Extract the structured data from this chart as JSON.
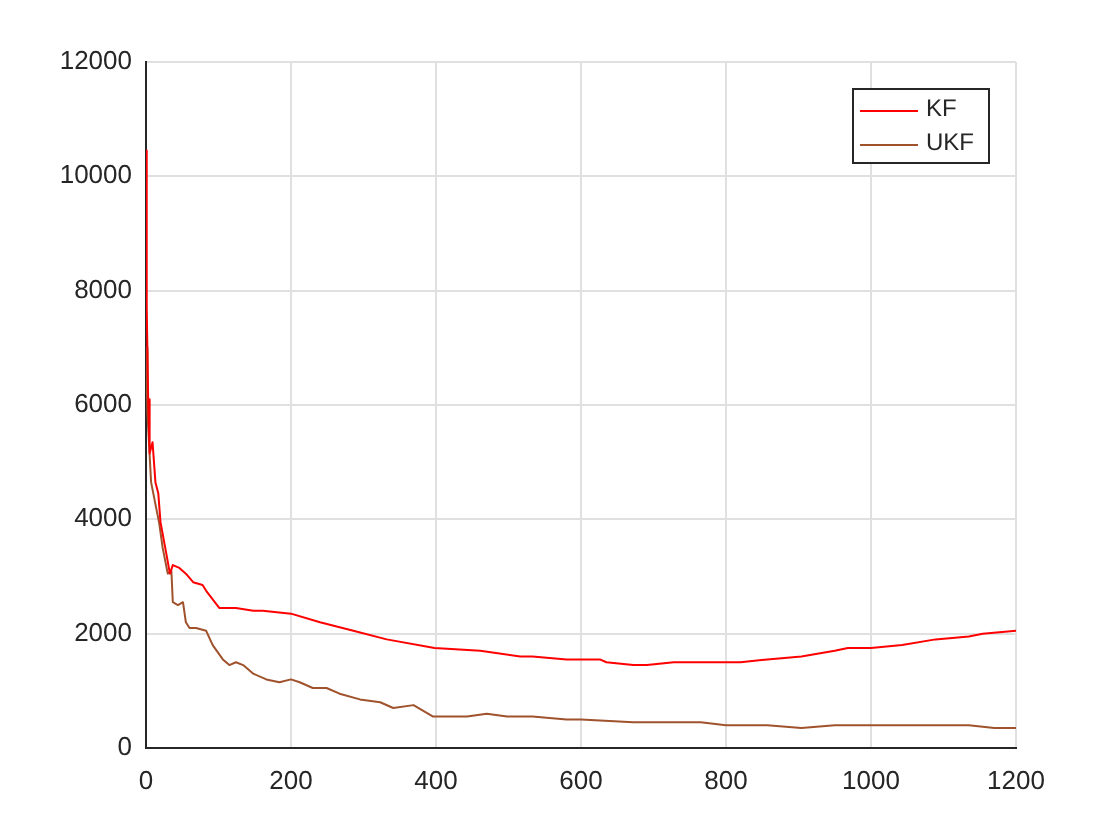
{
  "chart_data": {
    "type": "line",
    "xlim": [
      0,
      1200
    ],
    "xticks": [
      0,
      200,
      400,
      600,
      800,
      1000,
      1200
    ],
    "ylim": [
      0,
      12000
    ],
    "yticks": [
      0,
      2000,
      4000,
      6000,
      8000,
      10000,
      12000
    ],
    "grid": true,
    "legend": "top right",
    "series": [
      {
        "name": "KF",
        "color": "#ff0000",
        "x": [
          0,
          1,
          3,
          5,
          9,
          13,
          17,
          20,
          28,
          33,
          37,
          46,
          55,
          65,
          78,
          83,
          92,
          101,
          111,
          124,
          148,
          161,
          200,
          240,
          286,
          332,
          398,
          461,
          516,
          533,
          580,
          600,
          626,
          635,
          672,
          691,
          728,
          765,
          800,
          820,
          857,
          904,
          950,
          968,
          1000,
          1043,
          1089,
          1135,
          1154,
          1200
        ],
        "values": [
          10450,
          7700,
          6100,
          5150,
          5350,
          4650,
          4450,
          3950,
          3400,
          3050,
          3200,
          3150,
          3050,
          2900,
          2850,
          2750,
          2600,
          2450,
          2450,
          2450,
          2400,
          2400,
          2350,
          2200,
          2050,
          1900,
          1750,
          1700,
          1600,
          1600,
          1550,
          1550,
          1550,
          1500,
          1450,
          1450,
          1500,
          1500,
          1500,
          1500,
          1550,
          1600,
          1700,
          1750,
          1750,
          1800,
          1900,
          1950,
          2000,
          2050
        ]
      },
      {
        "name": "UKF",
        "color": "#a0522d",
        "x": [
          0,
          2,
          7,
          14,
          18,
          23,
          30,
          35,
          37,
          44,
          51,
          55,
          60,
          69,
          83,
          92,
          106,
          115,
          124,
          134,
          148,
          166,
          184,
          200,
          212,
          230,
          249,
          267,
          295,
          323,
          341,
          369,
          396,
          406,
          443,
          470,
          498,
          533,
          580,
          600,
          672,
          728,
          765,
          800,
          857,
          904,
          950,
          1000,
          1043,
          1135,
          1170,
          1200
        ],
        "values": [
          7000,
          5850,
          4650,
          4200,
          3950,
          3500,
          3050,
          3100,
          2550,
          2500,
          2550,
          2200,
          2100,
          2100,
          2050,
          1800,
          1550,
          1450,
          1500,
          1450,
          1300,
          1200,
          1150,
          1200,
          1150,
          1050,
          1050,
          950,
          850,
          800,
          700,
          750,
          550,
          550,
          550,
          600,
          550,
          550,
          500,
          500,
          450,
          450,
          450,
          400,
          400,
          350,
          400,
          400,
          400,
          400,
          350,
          350
        ]
      }
    ]
  }
}
